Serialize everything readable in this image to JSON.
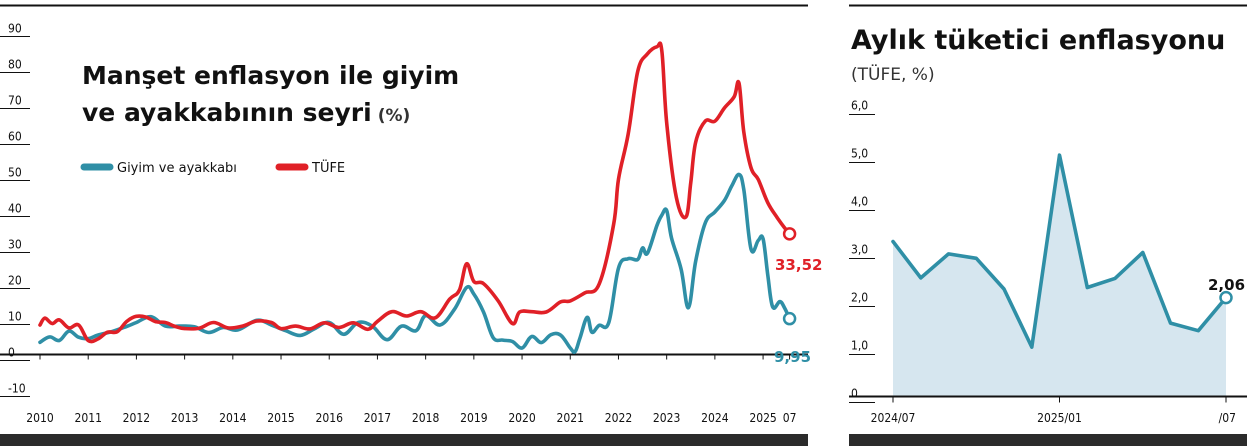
{
  "left_chart": {
    "title_line1": "Manşet enflasyon ile giyim",
    "title_line2": "ve ayakkabının seyri",
    "unit": "(%)",
    "legend": [
      {
        "label": "Giyim ve ayakkabı",
        "color": "#2f8fa6"
      },
      {
        "label": "TÜFE",
        "color": "#e02027"
      }
    ],
    "end_labels": {
      "tufe": "33,52",
      "giyim": "9,95"
    }
  },
  "right_chart": {
    "title": "Aylık tüketici enflasyonu",
    "unit": "(TÜFE, %)",
    "end_label": "2,06"
  },
  "chart_data": [
    {
      "type": "line",
      "title": "Manşet enflasyon ile giyim ve ayakkabının seyri (%)",
      "x_ticks": [
        "2010",
        "2011",
        "2012",
        "2013",
        "2014",
        "2015",
        "2016",
        "2017",
        "2018",
        "2019",
        "2020",
        "2021",
        "2022",
        "2023",
        "2024",
        "2025",
        "07"
      ],
      "y_ticks": [
        "90",
        "80",
        "70",
        "60",
        "50",
        "40",
        "30",
        "20",
        "10",
        "0",
        "-10"
      ],
      "ylim": [
        -10,
        90
      ],
      "xlim": [
        2010.0,
        2025.6
      ],
      "grid": false,
      "legend_position": "top-left",
      "series": [
        {
          "name": "TÜFE",
          "color": "#e02027",
          "x": [
            2010.0,
            2010.1,
            2010.25,
            2010.4,
            2010.6,
            2010.8,
            2011.0,
            2011.2,
            2011.4,
            2011.6,
            2011.8,
            2012.0,
            2012.2,
            2012.4,
            2012.6,
            2012.8,
            2013.0,
            2013.3,
            2013.6,
            2013.9,
            2014.2,
            2014.5,
            2014.8,
            2015.0,
            2015.3,
            2015.6,
            2015.9,
            2016.2,
            2016.5,
            2016.8,
            2017.0,
            2017.3,
            2017.6,
            2017.9,
            2018.2,
            2018.5,
            2018.7,
            2018.85,
            2019.0,
            2019.2,
            2019.5,
            2019.8,
            2019.95,
            2020.2,
            2020.5,
            2020.8,
            2021.0,
            2021.3,
            2021.6,
            2021.9,
            2022.0,
            2022.2,
            2022.4,
            2022.6,
            2022.8,
            2022.9,
            2023.0,
            2023.2,
            2023.4,
            2023.5,
            2023.6,
            2023.8,
            2024.0,
            2024.2,
            2024.4,
            2024.5,
            2024.6,
            2024.75,
            2024.9,
            2025.1,
            2025.3,
            2025.45,
            2025.55
          ],
          "values": [
            8.2,
            10.1,
            8.6,
            9.6,
            7.4,
            8.2,
            3.9,
            4.3,
            6.2,
            6.3,
            9.2,
            10.6,
            10.4,
            9.1,
            8.9,
            7.8,
            7.2,
            7.3,
            8.9,
            7.4,
            7.9,
            9.3,
            8.9,
            7.2,
            7.9,
            7.1,
            8.8,
            7.5,
            8.8,
            7.0,
            9.2,
            11.9,
            10.7,
            11.9,
            10.2,
            15.4,
            17.9,
            25.2,
            20.3,
            19.7,
            15.0,
            8.6,
            11.8,
            11.9,
            11.8,
            14.6,
            14.9,
            17.1,
            19.6,
            36.1,
            48.7,
            61.1,
            78.6,
            83.5,
            85.5,
            84.4,
            64.3,
            43.7,
            38.2,
            47.8,
            58.9,
            64.8,
            64.8,
            68.5,
            71.6,
            75.4,
            61.8,
            51.9,
            48.6,
            42.1,
            37.9,
            35.1,
            33.52
          ]
        },
        {
          "name": "Giyim ve ayakkabı",
          "color": "#2f8fa6",
          "x": [
            2010.0,
            2010.2,
            2010.4,
            2010.6,
            2010.8,
            2011.0,
            2011.2,
            2011.5,
            2011.8,
            2012.0,
            2012.3,
            2012.6,
            2012.9,
            2013.2,
            2013.5,
            2013.8,
            2014.1,
            2014.5,
            2014.8,
            2015.1,
            2015.4,
            2015.7,
            2016.0,
            2016.3,
            2016.6,
            2016.9,
            2017.2,
            2017.5,
            2017.8,
            2018.0,
            2018.3,
            2018.6,
            2018.85,
            2019.0,
            2019.2,
            2019.4,
            2019.6,
            2019.8,
            2020.0,
            2020.2,
            2020.4,
            2020.6,
            2020.8,
            2021.0,
            2021.1,
            2021.2,
            2021.35,
            2021.45,
            2021.6,
            2021.8,
            2022.0,
            2022.2,
            2022.4,
            2022.5,
            2022.6,
            2022.8,
            2022.9,
            2023.0,
            2023.1,
            2023.3,
            2023.45,
            2023.6,
            2023.8,
            2024.0,
            2024.2,
            2024.35,
            2024.5,
            2024.6,
            2024.75,
            2024.9,
            2025.0,
            2025.1,
            2025.2,
            2025.35,
            2025.45,
            2025.55
          ],
          "values": [
            3.4,
            4.9,
            3.9,
            6.5,
            4.8,
            4.4,
            5.4,
            6.4,
            7.8,
            8.9,
            10.5,
            7.9,
            7.9,
            7.7,
            6.1,
            7.5,
            6.8,
            9.5,
            8.2,
            6.6,
            5.3,
            7.2,
            8.9,
            5.6,
            8.9,
            7.8,
            4.1,
            7.9,
            6.6,
            10.8,
            8.2,
            12.6,
            18.6,
            16.8,
            11.8,
            4.7,
            4.0,
            3.6,
            1.8,
            5.0,
            3.3,
            5.5,
            5.4,
            1.8,
            0.8,
            4.5,
            10.3,
            6.2,
            8.1,
            8.9,
            24.0,
            26.6,
            26.4,
            29.6,
            28.1,
            35.9,
            38.7,
            40.0,
            32.4,
            23.7,
            13.0,
            25.8,
            36.5,
            39.6,
            42.8,
            46.8,
            50.0,
            45.8,
            29.3,
            31.7,
            32.1,
            21.8,
            13.2,
            14.7,
            12.8,
            9.95
          ]
        }
      ]
    },
    {
      "type": "area",
      "title": "Aylık tüketici enflasyonu",
      "ylabel": "(TÜFE, %)",
      "categories": [
        "2024/07",
        "2024/08",
        "2024/09",
        "2024/10",
        "2024/11",
        "2024/12",
        "2025/01",
        "2025/02",
        "2025/03",
        "2025/04",
        "2025/05",
        "2025/06",
        "2025/07"
      ],
      "x_tick_labels": [
        "2024/07",
        "2025/01",
        "/07"
      ],
      "y_ticks": [
        "6,0",
        "5,0",
        "4,0",
        "3,0",
        "2,0",
        "1,0",
        "0"
      ],
      "ylim": [
        0,
        6
      ],
      "grid": false,
      "series": [
        {
          "name": "",
          "color": "#2f8fa6",
          "values": [
            3.23,
            2.47,
            2.97,
            2.88,
            2.24,
            1.03,
            5.03,
            2.27,
            2.46,
            3.0,
            1.53,
            1.37,
            2.06
          ]
        }
      ]
    }
  ]
}
